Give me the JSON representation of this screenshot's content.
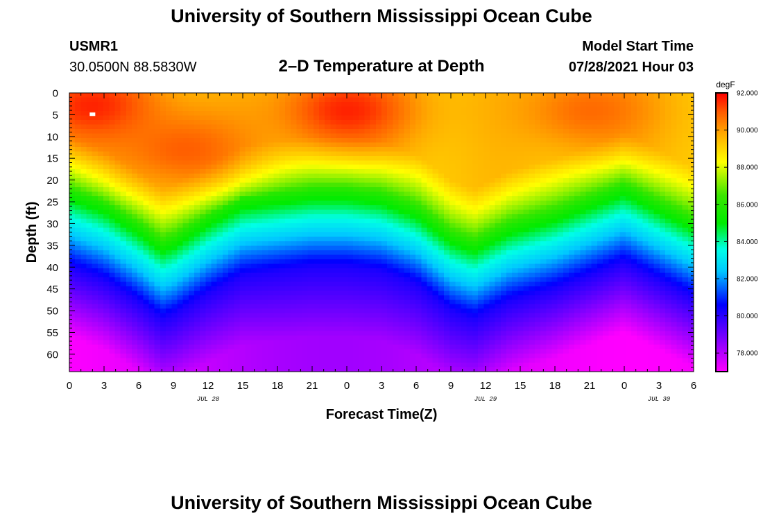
{
  "page": {
    "title_top": "University of Southern Mississippi Ocean Cube",
    "title_bottom": "University of Southern Mississippi Ocean Cube",
    "station_id": "USMR1",
    "station_coords": "30.0500N  88.5830W",
    "plot_title": "2–D Temperature at Depth",
    "model_label": "Model Start Time",
    "model_time": "07/28/2021 Hour 03"
  },
  "chart_data": {
    "type": "heatmap",
    "title": "2–D Temperature at Depth",
    "xlabel": "Forecast Time(Z)",
    "ylabel": "Depth (ft)",
    "x_ticks": [
      "0",
      "3",
      "6",
      "9",
      "12",
      "15",
      "18",
      "21",
      "0",
      "3",
      "6",
      "9",
      "12",
      "15",
      "18",
      "21",
      "0",
      "3",
      "6"
    ],
    "x_range_hours": [
      0,
      54
    ],
    "date_labels": [
      {
        "text": "JUL 28",
        "hour": 12
      },
      {
        "text": "JUL 29",
        "hour": 36
      },
      {
        "text": "JUL 30",
        "hour": 51
      }
    ],
    "y_ticks": [
      0,
      5,
      10,
      15,
      20,
      25,
      30,
      35,
      40,
      45,
      50,
      55,
      60
    ],
    "y_range_ft": [
      0,
      64
    ],
    "colorbar": {
      "unit": "degF",
      "range": [
        77,
        92
      ],
      "tick_values": [
        92,
        90,
        88,
        86,
        84,
        82,
        80,
        78
      ],
      "tick_labels": [
        "92.000",
        "90.000",
        "88.000",
        "86.000",
        "84.000",
        "82.000",
        "80.000",
        "78.000"
      ]
    },
    "isotherm_86F_depth_ft": {
      "hours": [
        0,
        3,
        6,
        8,
        9,
        12,
        15,
        18,
        21,
        24,
        27,
        30,
        33,
        35,
        38,
        42,
        45,
        48,
        51,
        54
      ],
      "depths": [
        22,
        25,
        30,
        34,
        33,
        28,
        24,
        23,
        22,
        22,
        23,
        26,
        32,
        34,
        30,
        27,
        24,
        21,
        25,
        29
      ]
    },
    "surface_hot_spots": [
      {
        "hour": 2,
        "depth": 3,
        "temp": 92
      },
      {
        "hour": 24,
        "depth": 4,
        "temp": 92
      },
      {
        "hour": 10,
        "depth": 13,
        "temp": 91.2
      },
      {
        "hour": 45,
        "depth": 4,
        "temp": 91
      }
    ],
    "deep_temperature": {
      "depth_ft": 64,
      "temp_min": 77,
      "temp_max": 78.3
    }
  }
}
